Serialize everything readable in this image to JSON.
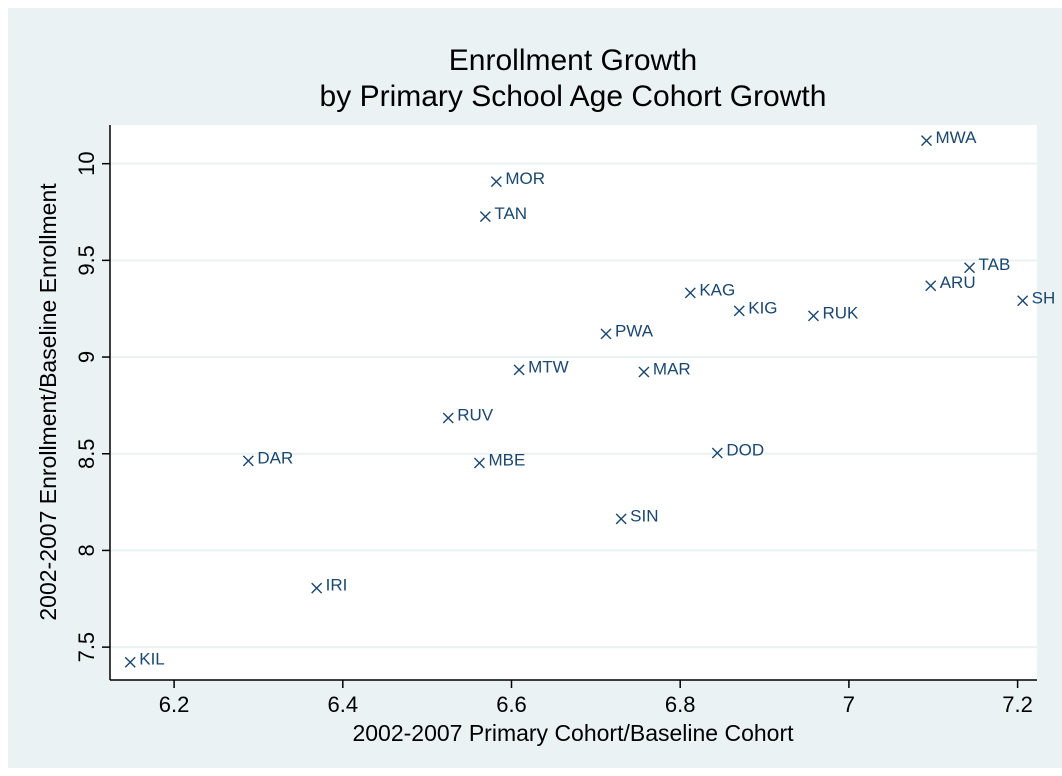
{
  "chart_data": {
    "type": "scatter",
    "title": [
      "Enrollment Growth",
      "by Primary School Age Cohort Growth"
    ],
    "x_label": "2002-2007 Primary Cohort/Baseline Cohort",
    "y_label": "2002-2007 Enrollment/Baseline Enrollment",
    "labels": [
      "KIL",
      "DAR",
      "IRI",
      "RUV",
      "MBE",
      "MOR",
      "TAN",
      "MTW",
      "PWA",
      "SIN",
      "MAR",
      "KAG",
      "DOD",
      "KIG",
      "RUK",
      "MWA",
      "ARU",
      "TAB",
      "SH"
    ],
    "x": [
      6.148,
      6.288,
      6.369,
      6.525,
      6.562,
      6.582,
      6.569,
      6.609,
      6.712,
      6.73,
      6.757,
      6.812,
      6.844,
      6.87,
      6.958,
      7.092,
      7.097,
      7.143,
      7.206
    ],
    "values": [
      7.422,
      8.463,
      7.805,
      8.685,
      8.452,
      9.907,
      9.726,
      8.934,
      9.12,
      8.163,
      8.923,
      9.332,
      8.504,
      9.239,
      9.213,
      10.119,
      9.369,
      9.462,
      9.291
    ],
    "color": "#1a476f",
    "xlim": [
      6.124,
      7.223
    ],
    "ylim": [
      7.33,
      10.2
    ],
    "xticks": [
      6.2,
      6.4,
      6.6,
      6.8,
      7,
      7.2
    ],
    "yticks": [
      7.5,
      8,
      8.5,
      9,
      9.5,
      10
    ],
    "grid": true
  }
}
